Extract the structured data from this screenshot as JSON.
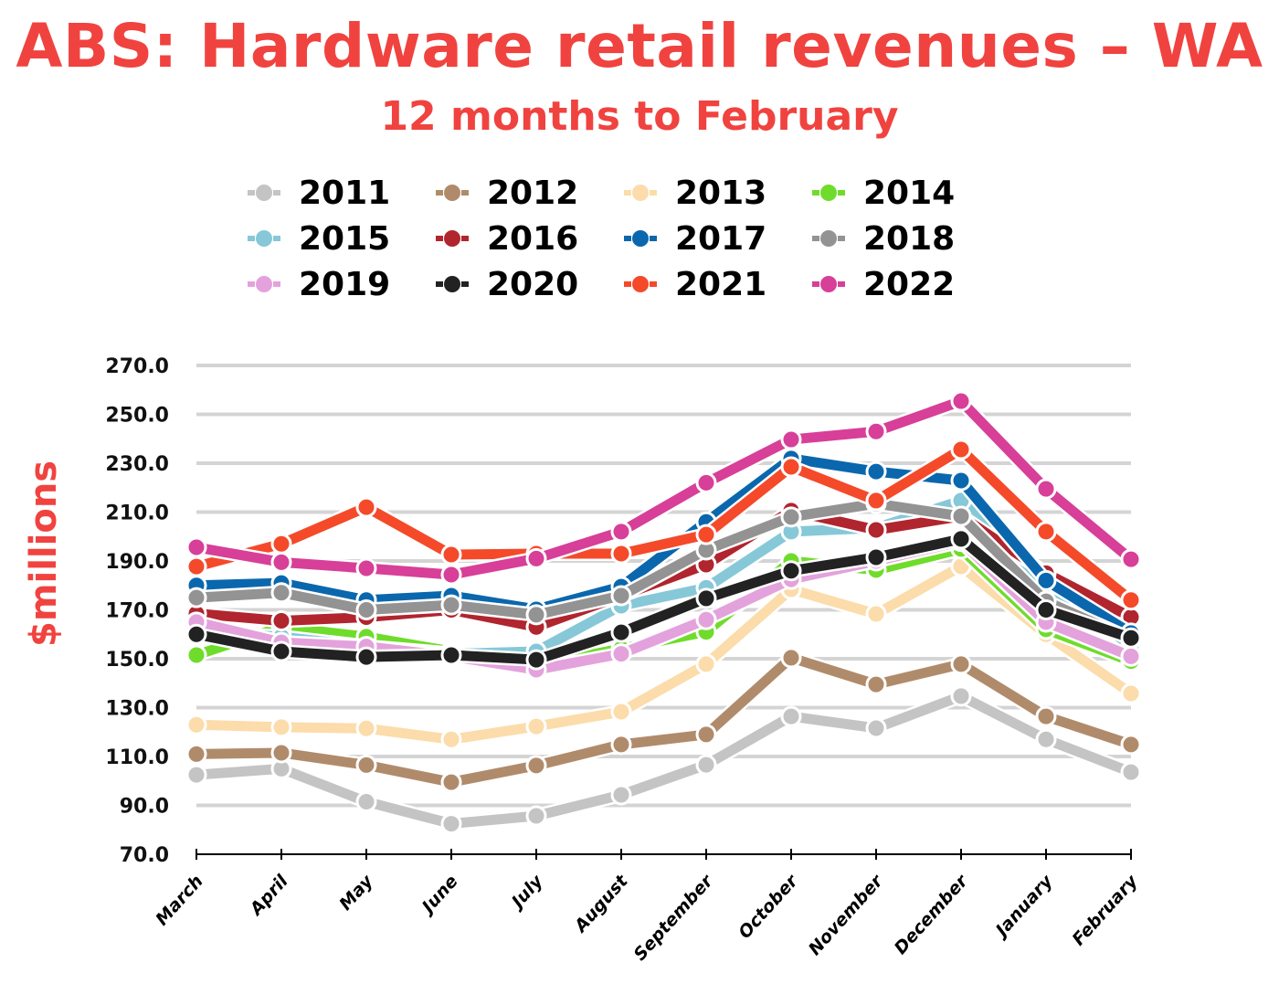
{
  "chart_data": {
    "type": "line",
    "title": "ABS: Hardware retail revenues – WA",
    "subtitle": "12 months to February",
    "xlabel": "",
    "ylabel": "$millions",
    "ylim": [
      70,
      270
    ],
    "yticks": [
      "70.0",
      "90.0",
      "110.0",
      "130.0",
      "150.0",
      "170.0",
      "190.0",
      "210.0",
      "230.0",
      "250.0",
      "270.0"
    ],
    "ytick_values": [
      70,
      90,
      110,
      130,
      150,
      170,
      190,
      210,
      230,
      250,
      270
    ],
    "grid": true,
    "legend_position": "top",
    "categories": [
      "March",
      "April",
      "May",
      "June",
      "July",
      "August",
      "September",
      "October",
      "November",
      "December",
      "January",
      "February"
    ],
    "series": [
      {
        "name": "2011",
        "color": "#c4c4c4",
        "values": [
          102.5,
          105,
          91.5,
          82.5,
          85.7,
          94.3,
          106.6,
          126.4,
          121.6,
          134.7,
          117,
          103.6
        ]
      },
      {
        "name": "2012",
        "color": "#b08b6b",
        "values": [
          111,
          111.5,
          106.5,
          99.5,
          106.3,
          114.9,
          119,
          150.4,
          139.5,
          147.8,
          126.4,
          114.9
        ]
      },
      {
        "name": "2013",
        "color": "#fbdcaa",
        "values": [
          123,
          122,
          121.5,
          117,
          122.3,
          128.3,
          147.8,
          178.4,
          168.3,
          187.8,
          160,
          135.8
        ]
      },
      {
        "name": "2014",
        "color": "#6fdc2c",
        "values": [
          151.5,
          163,
          159,
          153,
          147.4,
          154.1,
          161,
          190,
          186.3,
          194.9,
          162,
          149
        ]
      },
      {
        "name": "2015",
        "color": "#86c8d8",
        "values": [
          161,
          159,
          155,
          152,
          153,
          171.7,
          179,
          202,
          203.5,
          214.7,
          179,
          155.5
        ]
      },
      {
        "name": "2016",
        "color": "#b0252e",
        "values": [
          168.5,
          165.5,
          167,
          170,
          163,
          175.8,
          188.5,
          210.6,
          202.7,
          208.3,
          185,
          167
        ]
      },
      {
        "name": "2017",
        "color": "#0a67ad",
        "values": [
          180,
          181,
          174,
          175.8,
          170.2,
          179.5,
          206,
          231.9,
          226.6,
          222.9,
          182,
          160.5
        ]
      },
      {
        "name": "2018",
        "color": "#939393",
        "values": [
          175,
          177,
          170,
          172,
          168,
          175.8,
          194.5,
          208,
          213.5,
          208.3,
          173.5,
          158
        ]
      },
      {
        "name": "2019",
        "color": "#e3a2dc",
        "values": [
          165,
          156.7,
          155,
          151,
          145.5,
          152,
          166,
          182.5,
          190,
          198,
          165,
          151
        ]
      },
      {
        "name": "2020",
        "color": "#222222",
        "values": [
          160,
          153,
          150.7,
          151.5,
          149.6,
          160.8,
          174.7,
          186,
          191.5,
          199,
          170,
          158.5
        ]
      },
      {
        "name": "2021",
        "color": "#f44a2a",
        "values": [
          187.7,
          197,
          212,
          192.6,
          193,
          193,
          200.8,
          228.5,
          214.7,
          235.6,
          202,
          174
        ]
      },
      {
        "name": "2022",
        "color": "#d73f98",
        "values": [
          195.6,
          189.5,
          187,
          184.4,
          191,
          202,
          222,
          239.7,
          243,
          255.4,
          219.5,
          190.7
        ]
      }
    ]
  }
}
